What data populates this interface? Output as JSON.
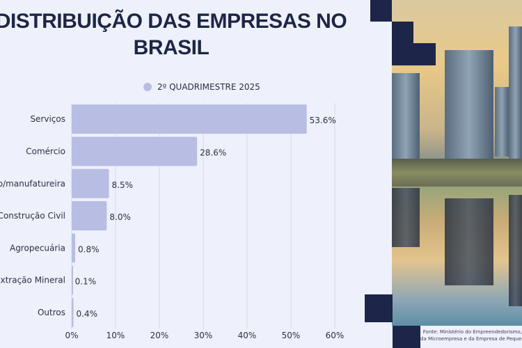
{
  "title": "DISTRIBUIÇÃO DAS EMPRESAS NO BRASIL",
  "source": [
    "Fonte: Ministério do Empreendedorismo,",
    "da Microempresa e da Empresa de Pequeno Porte"
  ],
  "colors": {
    "bar": "#b8bde3",
    "title": "#1d2548",
    "accent_blocks": "#1d2548",
    "background": "#eef1fb"
  },
  "chart_data": {
    "type": "bar",
    "orientation": "horizontal",
    "title": "DISTRIBUIÇÃO DAS EMPRESAS NO BRASIL",
    "legend": {
      "position": "top",
      "entries": [
        "2º QUADRIMESTRE 2025"
      ]
    },
    "categories": [
      "Serviços",
      "Comércio",
      "Indústria de transformação/manufatureira",
      "Construção Civil",
      "Agropecuária",
      "Extração Mineral",
      "Outros"
    ],
    "series": [
      {
        "name": "2º QUADRIMESTRE 2025",
        "values": [
          53.6,
          28.6,
          8.5,
          8.0,
          0.8,
          0.1,
          0.4
        ]
      }
    ],
    "data_labels": [
      "53.6%",
      "28.6%",
      "8.5%",
      "8.0%",
      "0.8%",
      "0.1%",
      "0.4%"
    ],
    "xlim": [
      0,
      60
    ],
    "xticks": [
      "0%",
      "10%",
      "20%",
      "30%",
      "40%",
      "50%",
      "60%"
    ],
    "grid": true
  }
}
